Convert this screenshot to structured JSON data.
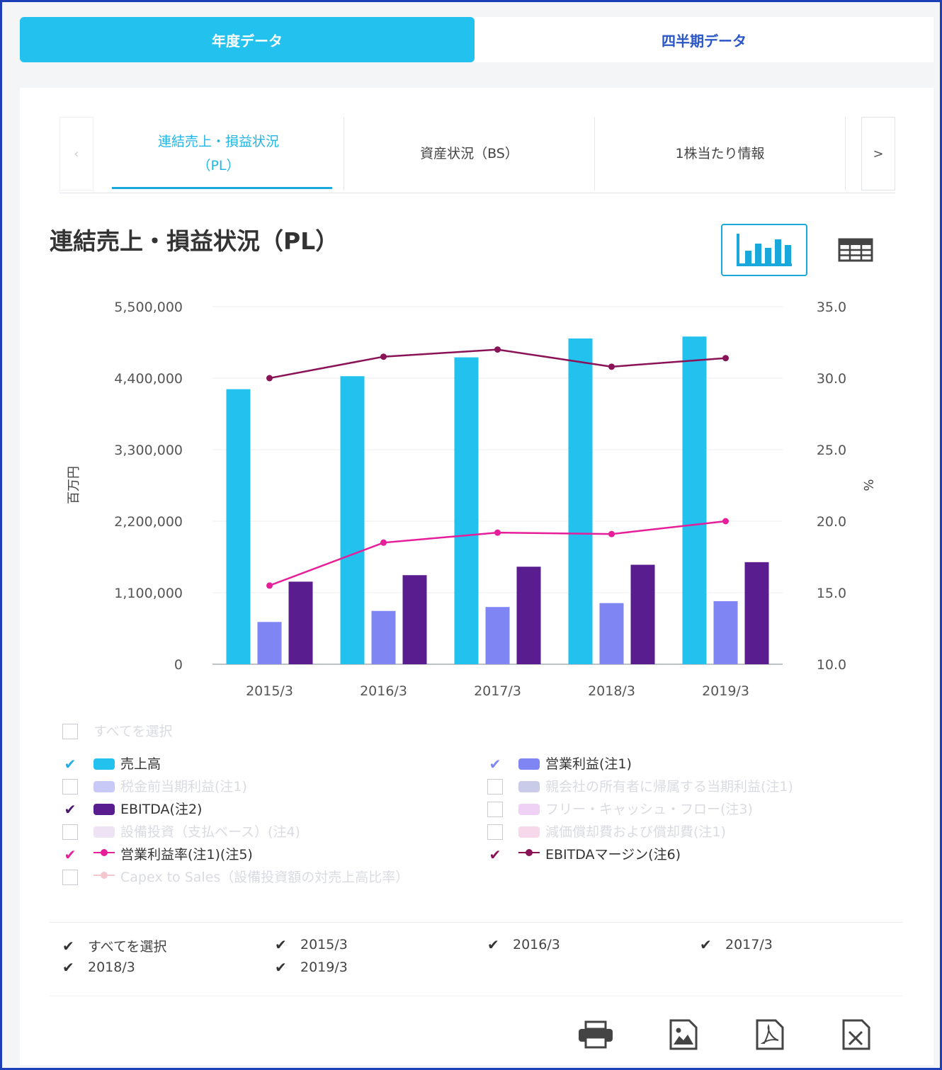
{
  "top_tabs": {
    "annual": "年度データ",
    "quarterly": "四半期データ"
  },
  "sub_tabs": {
    "prev": "‹",
    "pl_line1": "連結売上・損益状況",
    "pl_line2": "（PL）",
    "bs": "資産状況（BS）",
    "per_share": "1株当たり情報",
    "next": ">"
  },
  "section_title": "連結売上・損益状況（PL）",
  "icons": {
    "chart_view": "bar-chart-icon",
    "table_view": "table-icon",
    "print": "print-icon",
    "image": "image-icon",
    "pdf": "pdf-icon",
    "excel": "excel-icon"
  },
  "chart_data": {
    "type": "bar",
    "categories": [
      "2015/3",
      "2016/3",
      "2017/3",
      "2018/3",
      "2019/3"
    ],
    "ylabel": "百万円",
    "y2label": "%",
    "ylim": [
      0,
      5500000
    ],
    "y2lim": [
      10.0,
      35.0
    ],
    "yticks": [
      "0",
      "1,100,000",
      "2,200,000",
      "3,300,000",
      "4,400,000",
      "5,500,000"
    ],
    "y2ticks": [
      "10.0",
      "15.0",
      "20.0",
      "25.0",
      "30.0",
      "35.0"
    ],
    "grid": true,
    "series": [
      {
        "name": "売上高",
        "kind": "bar",
        "axis": "left",
        "color": "#22c1ee",
        "values": [
          4230000,
          4430000,
          4720000,
          5010000,
          5040000
        ]
      },
      {
        "name": "営業利益(注1)",
        "kind": "bar",
        "axis": "left",
        "color": "#7f86f4",
        "values": [
          650000,
          820000,
          880000,
          940000,
          970000
        ]
      },
      {
        "name": "EBITDA(注2)",
        "kind": "bar",
        "axis": "left",
        "color": "#5a1d8f",
        "values": [
          1270000,
          1370000,
          1500000,
          1530000,
          1570000
        ]
      },
      {
        "name": "営業利益率(注1)(注5)",
        "kind": "line",
        "axis": "right",
        "color": "#e61e9a",
        "values": [
          15.5,
          18.5,
          19.2,
          19.1,
          20.0
        ]
      },
      {
        "name": "EBITDAマージン(注6)",
        "kind": "line",
        "axis": "right",
        "color": "#8a1256",
        "values": [
          30.0,
          31.5,
          32.0,
          30.8,
          31.4
        ]
      }
    ]
  },
  "legend": {
    "select_all": "すべてを選択",
    "items": [
      {
        "label": "売上高",
        "checked": true,
        "color": "#22c1ee",
        "check_color": "#22aee0",
        "style": "bar"
      },
      {
        "label": "営業利益(注1)",
        "checked": true,
        "color": "#7f86f4",
        "check_color": "#7f86f4",
        "style": "bar"
      },
      {
        "label": "税金前当期利益(注1)",
        "checked": false,
        "color": "#c8c9f7",
        "style": "bar"
      },
      {
        "label": "親会社の所有者に帰属する当期利益(注1)",
        "checked": false,
        "color": "#c9cbe8",
        "style": "bar"
      },
      {
        "label": "EBITDA(注2)",
        "checked": true,
        "color": "#5a1d8f",
        "check_color": "#4a1670",
        "style": "bar"
      },
      {
        "label": "フリー・キャッシュ・フロー(注3)",
        "checked": false,
        "color": "#efd1f5",
        "style": "bar"
      },
      {
        "label": "設備投資（支払ベース）(注4)",
        "checked": false,
        "color": "#eee3f4",
        "style": "bar"
      },
      {
        "label": "減価償却費および償却費(注1)",
        "checked": false,
        "color": "#f7d8ea",
        "style": "bar"
      },
      {
        "label": "営業利益率(注1)(注5)",
        "checked": true,
        "color": "#e61e9a",
        "check_color": "#e61e9a",
        "style": "line"
      },
      {
        "label": "EBITDAマージン(注6)",
        "checked": true,
        "color": "#8a1256",
        "check_color": "#8a1256",
        "style": "line"
      },
      {
        "label": "Capex to Sales（設備投資額の対売上高比率）",
        "checked": false,
        "color": "#f4c7cf",
        "style": "line"
      }
    ]
  },
  "years": {
    "select_all": "すべてを選択",
    "items": [
      "2015/3",
      "2016/3",
      "2017/3",
      "2018/3",
      "2019/3"
    ]
  }
}
